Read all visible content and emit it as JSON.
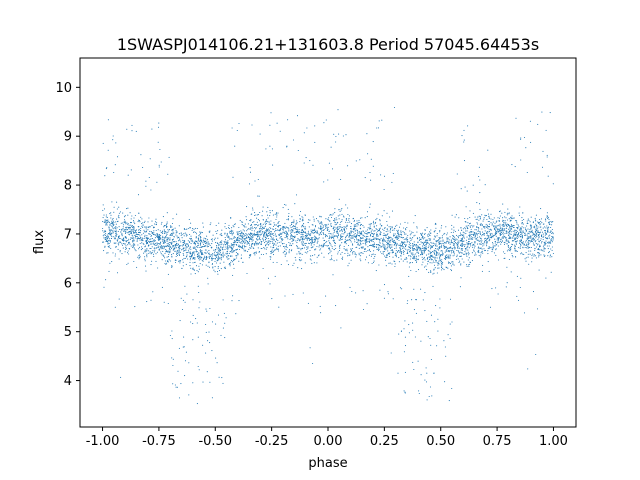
{
  "chart_data": {
    "type": "scatter",
    "title": "1SWASPJ014106.21+131603.8 Period 57045.64453s",
    "xlabel": "phase",
    "ylabel": "flux",
    "xlim": [
      -1.1,
      1.1
    ],
    "ylim": [
      3.05,
      10.6
    ],
    "xticks": [
      "-1.00",
      "-0.75",
      "-0.50",
      "-0.25",
      "0.00",
      "0.25",
      "0.50",
      "0.75",
      "1.00"
    ],
    "yticks": [
      "4",
      "5",
      "6",
      "7",
      "8",
      "9",
      "10"
    ],
    "grid": false,
    "legend": "none",
    "marker_color": "#1f77b4",
    "series": [
      {
        "profile_phase": [
          0.0,
          0.05,
          0.1,
          0.15,
          0.2,
          0.25,
          0.3,
          0.35,
          0.4,
          0.45,
          0.5,
          0.55,
          0.6,
          0.65,
          0.7,
          0.75,
          0.8,
          0.85,
          0.9,
          0.95,
          1.0
        ],
        "profile_flux": [
          7.0,
          7.05,
          7.0,
          6.95,
          6.9,
          6.85,
          6.8,
          6.75,
          6.7,
          6.68,
          6.68,
          6.7,
          6.8,
          6.95,
          7.0,
          7.0,
          7.0,
          6.98,
          6.95,
          6.95,
          7.0
        ],
        "eclipse_low_flux_range": [
          3.5,
          6.0
        ],
        "eclipse_phase_range": [
          0.3,
          0.55
        ],
        "flare_flux_range": [
          7.5,
          8.5
        ],
        "flare_phase_centers": [
          0.35,
          0.67
        ]
      }
    ]
  }
}
